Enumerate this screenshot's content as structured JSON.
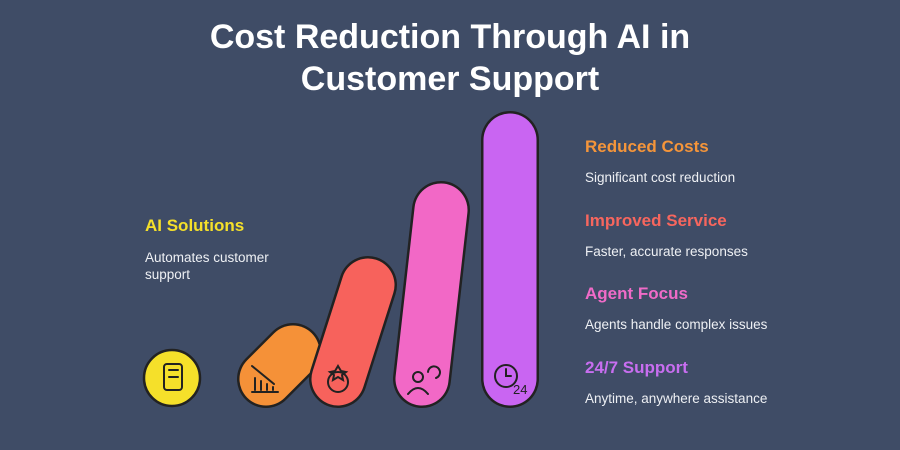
{
  "title": "Cost Reduction Through AI in Customer Support",
  "left_item": {
    "heading": "AI Solutions",
    "description": "Automates customer support"
  },
  "items": [
    {
      "heading": "Reduced Costs",
      "description": "Significant cost reduction"
    },
    {
      "heading": "Improved Service",
      "description": "Faster, accurate responses"
    },
    {
      "heading": "Agent Focus",
      "description": "Agents handle complex issues"
    },
    {
      "heading": "24/7 Support",
      "description": "Anytime, anywhere assistance"
    }
  ]
}
